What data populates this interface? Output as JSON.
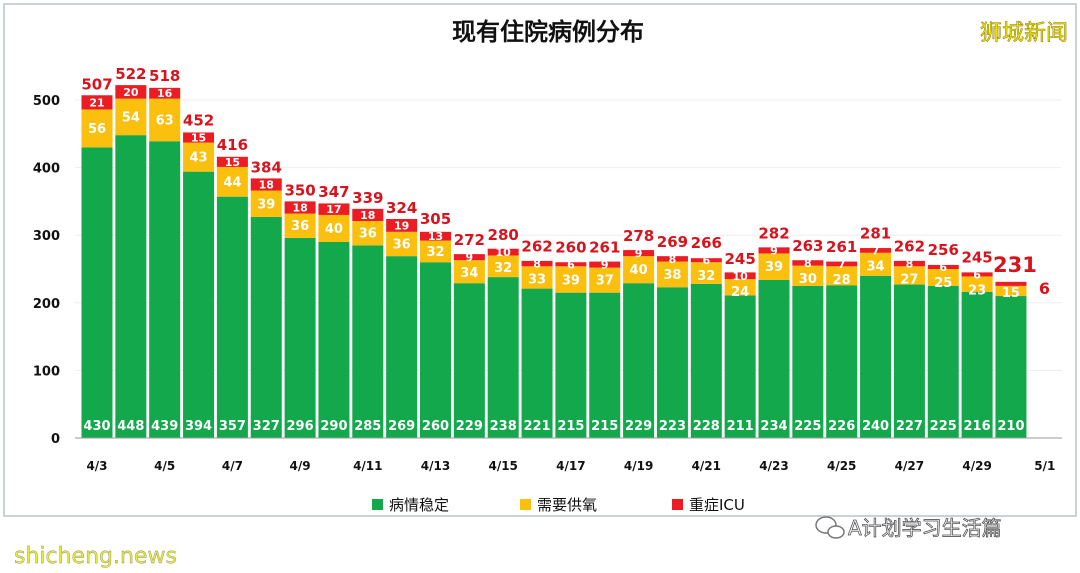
{
  "chart_data": {
    "type": "bar",
    "stacked": true,
    "title": "现有住院病例分布",
    "categories": [
      "4/3",
      "4/4",
      "4/5",
      "4/6",
      "4/7",
      "4/8",
      "4/9",
      "4/10",
      "4/11",
      "4/12",
      "4/13",
      "4/14",
      "4/15",
      "4/16",
      "4/17",
      "4/18",
      "4/19",
      "4/20",
      "4/21",
      "4/22",
      "4/23",
      "4/24",
      "4/25",
      "4/26",
      "4/27",
      "4/28",
      "4/29",
      "4/30"
    ],
    "x_tick_labels": [
      "4/3",
      "4/5",
      "4/7",
      "4/9",
      "4/11",
      "4/13",
      "4/15",
      "4/17",
      "4/19",
      "4/21",
      "4/23",
      "4/25",
      "4/27",
      "4/29",
      "5/1"
    ],
    "y_ticks": [
      0,
      100,
      200,
      300,
      400,
      500
    ],
    "ylim": [
      0,
      560
    ],
    "grid": "horizontal",
    "legend_position": "bottom",
    "series": [
      {
        "name": "病情稳定",
        "color": "#12a84b",
        "values": [
          430,
          448,
          439,
          394,
          357,
          327,
          296,
          290,
          285,
          269,
          260,
          229,
          238,
          221,
          215,
          215,
          229,
          223,
          228,
          211,
          234,
          225,
          226,
          240,
          227,
          225,
          216,
          210
        ]
      },
      {
        "name": "需要供氧",
        "color": "#fbbf0e",
        "values": [
          56,
          54,
          63,
          43,
          44,
          39,
          36,
          40,
          36,
          36,
          32,
          34,
          32,
          33,
          39,
          37,
          40,
          38,
          32,
          24,
          39,
          30,
          28,
          34,
          27,
          25,
          23,
          15
        ]
      },
      {
        "name": "重症ICU",
        "color": "#ec1c24",
        "values": [
          21,
          20,
          16,
          15,
          15,
          18,
          18,
          17,
          18,
          19,
          13,
          9,
          10,
          8,
          6,
          9,
          9,
          8,
          6,
          10,
          9,
          8,
          7,
          7,
          8,
          6,
          6,
          6
        ]
      }
    ],
    "totals": [
      507,
      522,
      518,
      452,
      416,
      384,
      350,
      347,
      339,
      324,
      305,
      272,
      280,
      262,
      260,
      261,
      278,
      269,
      266,
      245,
      282,
      263,
      261,
      281,
      262,
      256,
      245,
      231
    ],
    "total_label_color": "#d7141e"
  },
  "watermarks": {
    "top_right": "狮城新闻",
    "bottom_right": "A计划学习生活篇",
    "bottom_left": "shicheng.news"
  }
}
